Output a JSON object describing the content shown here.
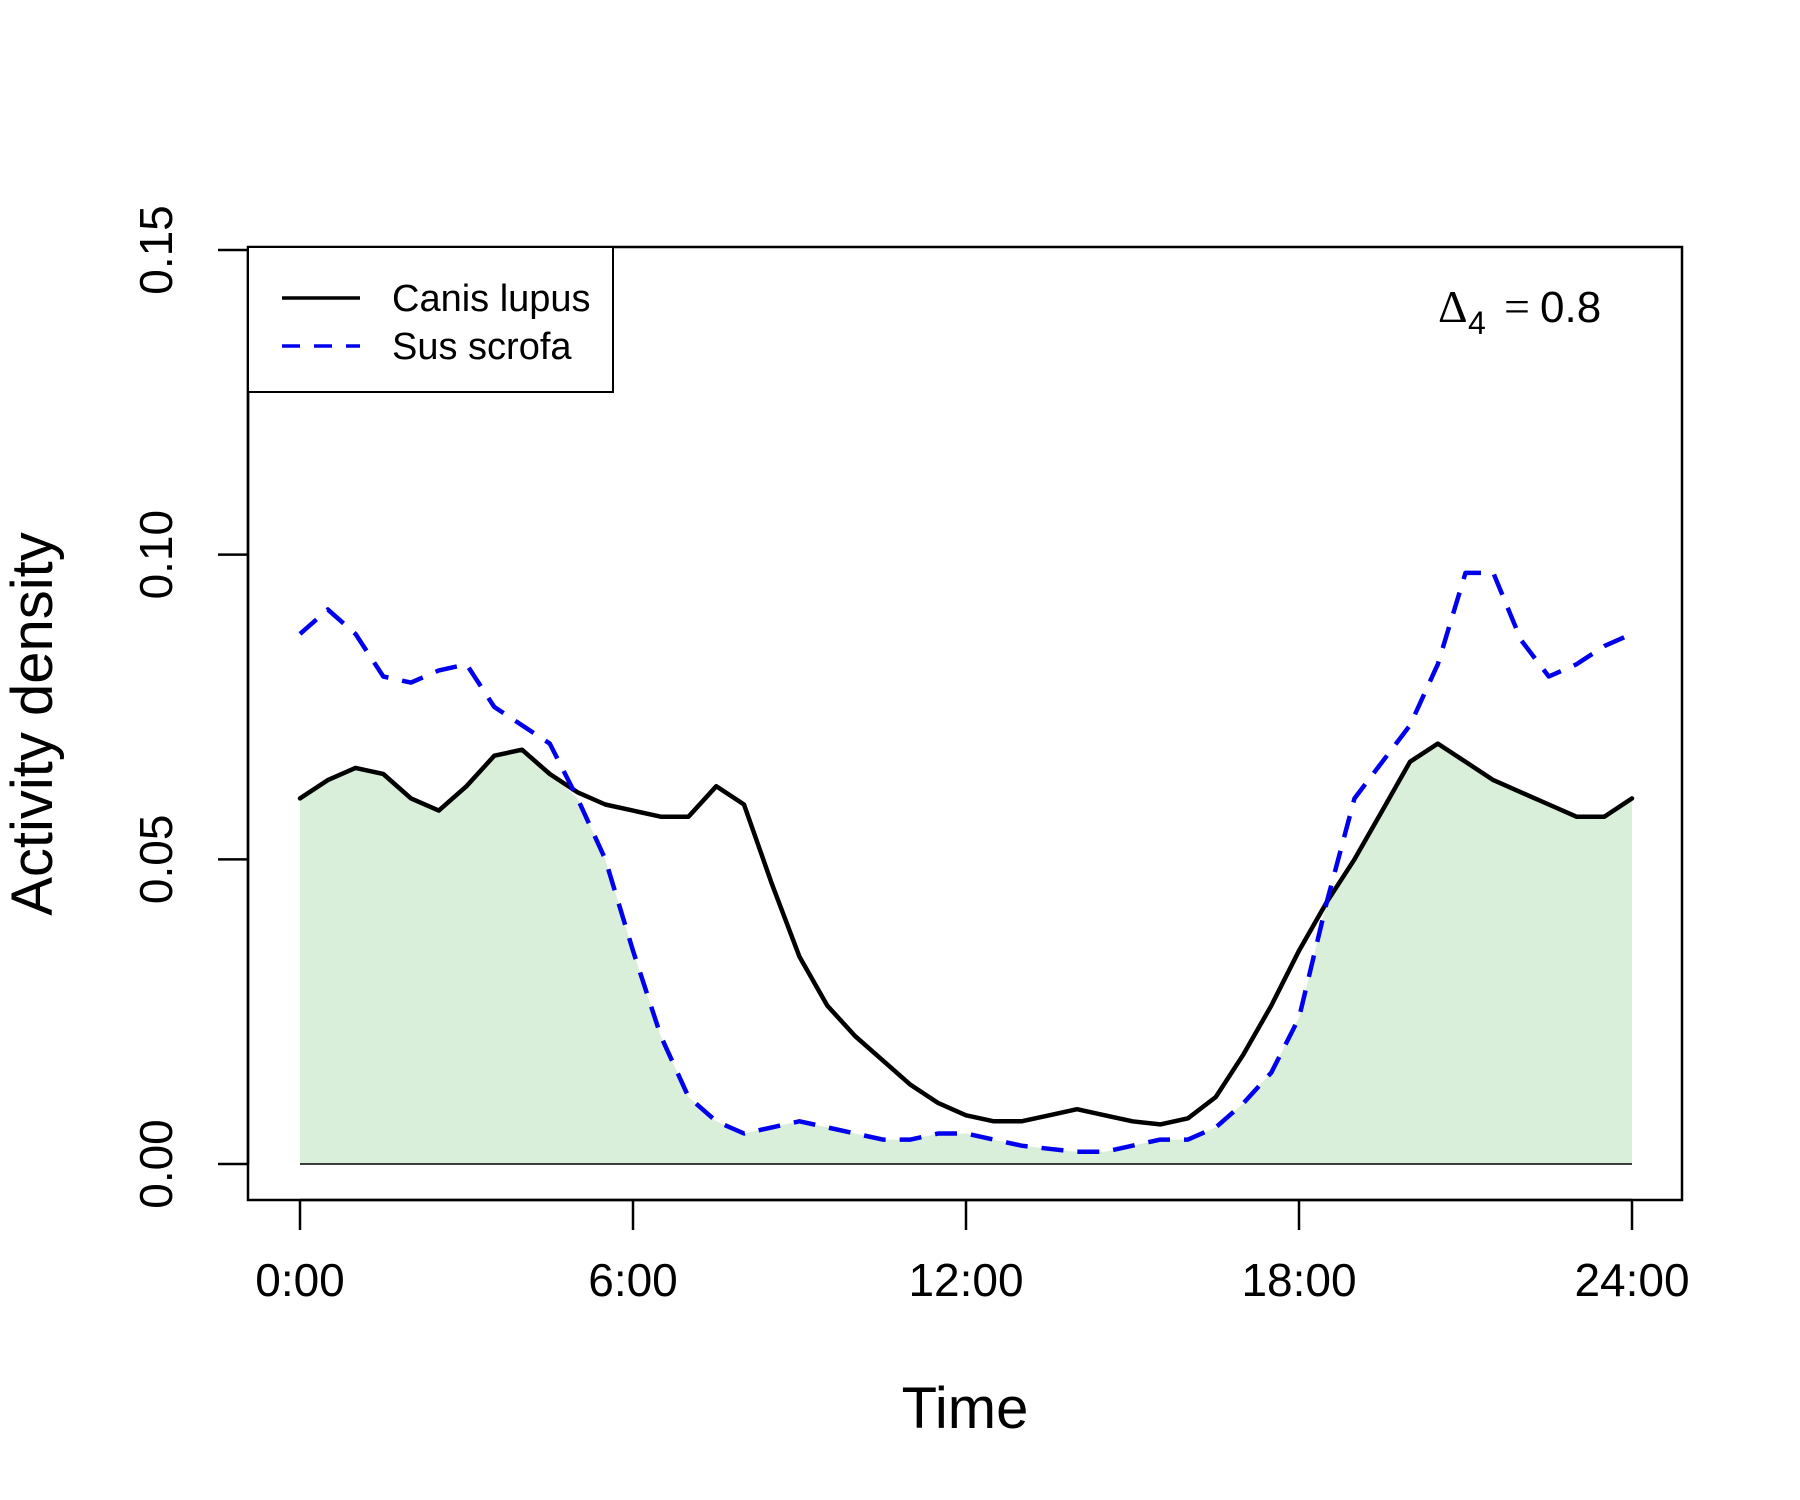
{
  "chart_data": {
    "type": "line",
    "xlabel": "Time",
    "ylabel": "Activity density",
    "xlim": [
      0,
      24
    ],
    "ylim": [
      0,
      0.15
    ],
    "x_ticks": [
      0,
      6,
      12,
      18,
      24
    ],
    "x_tick_labels": [
      "0:00",
      "6:00",
      "12:00",
      "18:00",
      "24:00"
    ],
    "y_ticks": [
      0,
      0.05,
      0.1,
      0.15
    ],
    "y_tick_labels": [
      "0.00",
      "0.05",
      "0.10",
      "0.15"
    ],
    "legend_position": "top-left",
    "annotation": {
      "symbol": "Δ",
      "subscript": "4",
      "equals": "=",
      "value": "0.8"
    },
    "overlap_fill_color": "#d9efd9",
    "series": [
      {
        "name": "Canis lupus",
        "color": "#000000",
        "style": "solid",
        "x": [
          0,
          0.5,
          1,
          1.5,
          2,
          2.5,
          3,
          3.5,
          4,
          4.5,
          5,
          5.5,
          6,
          6.5,
          7,
          7.5,
          8,
          8.5,
          9,
          9.5,
          10,
          10.5,
          11,
          11.5,
          12,
          12.5,
          13,
          13.5,
          14,
          14.5,
          15,
          15.5,
          16,
          16.5,
          17,
          17.5,
          18,
          18.5,
          19,
          19.5,
          20,
          20.5,
          21,
          21.5,
          22,
          22.5,
          23,
          23.5,
          24
        ],
        "y": [
          0.06,
          0.063,
          0.065,
          0.064,
          0.06,
          0.058,
          0.062,
          0.067,
          0.068,
          0.064,
          0.061,
          0.059,
          0.058,
          0.057,
          0.057,
          0.062,
          0.059,
          0.046,
          0.034,
          0.026,
          0.021,
          0.017,
          0.013,
          0.01,
          0.008,
          0.007,
          0.007,
          0.008,
          0.009,
          0.008,
          0.007,
          0.0065,
          0.0075,
          0.011,
          0.018,
          0.026,
          0.035,
          0.043,
          0.05,
          0.058,
          0.066,
          0.069,
          0.066,
          0.063,
          0.061,
          0.059,
          0.057,
          0.057,
          0.06
        ]
      },
      {
        "name": "Sus scrofa",
        "color": "#0000ee",
        "style": "dashed",
        "x": [
          0,
          0.5,
          1,
          1.5,
          2,
          2.5,
          3,
          3.5,
          4,
          4.5,
          5,
          5.5,
          6,
          6.5,
          7,
          7.5,
          8,
          8.5,
          9,
          9.5,
          10,
          10.5,
          11,
          11.5,
          12,
          12.5,
          13,
          13.5,
          14,
          14.5,
          15,
          15.5,
          16,
          16.5,
          17,
          17.5,
          18,
          18.5,
          19,
          19.5,
          20,
          20.5,
          21,
          21.5,
          22,
          22.5,
          23,
          23.5,
          24
        ],
        "y": [
          0.087,
          0.091,
          0.087,
          0.08,
          0.079,
          0.081,
          0.082,
          0.075,
          0.072,
          0.069,
          0.06,
          0.05,
          0.035,
          0.021,
          0.011,
          0.007,
          0.005,
          0.006,
          0.007,
          0.006,
          0.005,
          0.004,
          0.004,
          0.005,
          0.005,
          0.004,
          0.003,
          0.0025,
          0.002,
          0.002,
          0.003,
          0.004,
          0.004,
          0.006,
          0.01,
          0.015,
          0.024,
          0.043,
          0.06,
          0.066,
          0.072,
          0.082,
          0.097,
          0.097,
          0.086,
          0.08,
          0.082,
          0.085,
          0.087
        ]
      }
    ]
  }
}
